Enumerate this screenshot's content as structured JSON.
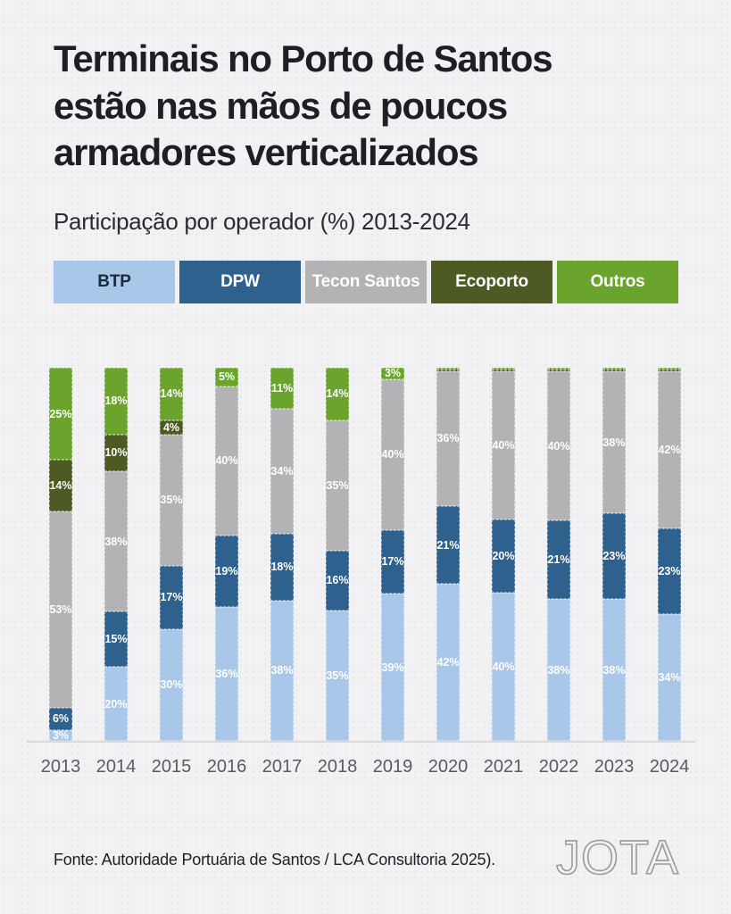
{
  "header": {
    "title_lines": [
      "Terminais no Porto de Santos",
      "estão nas mãos de poucos",
      "armadores verticalizados"
    ],
    "subtitle": "Participação por operador (%) 2013-2024"
  },
  "chart_data": {
    "type": "bar",
    "stacked": true,
    "unit": "%",
    "title": "Participação por operador (%) 2013-2024",
    "categories": [
      "2013",
      "2014",
      "2015",
      "2016",
      "2017",
      "2018",
      "2019",
      "2020",
      "2021",
      "2022",
      "2023",
      "2024"
    ],
    "series": [
      {
        "name": "BTP",
        "color": "#a9c7e9",
        "legend_text_color": "#1b2a3a",
        "values": [
          3,
          20,
          30,
          36,
          38,
          35,
          39,
          42,
          40,
          38,
          38,
          34
        ]
      },
      {
        "name": "DPW",
        "color": "#2f618f",
        "legend_text_color": "#ffffff",
        "values": [
          6,
          15,
          17,
          19,
          18,
          16,
          17,
          21,
          20,
          21,
          23,
          23
        ]
      },
      {
        "name": "Tecon Santos",
        "color": "#b3b3b5",
        "legend_text_color": "#ffffff",
        "values": [
          53,
          38,
          35,
          40,
          34,
          35,
          40,
          36,
          40,
          40,
          38,
          42
        ]
      },
      {
        "name": "Ecoporto",
        "color": "#4d5a23",
        "legend_text_color": "#ffffff",
        "values": [
          14,
          10,
          4,
          0,
          0,
          0,
          0,
          0.5,
          0.5,
          0.5,
          0.5,
          0.5
        ]
      },
      {
        "name": "Outros",
        "color": "#6aa42c",
        "legend_text_color": "#ffffff",
        "values": [
          25,
          18,
          14,
          5,
          11,
          14,
          3,
          0.5,
          0.5,
          0.5,
          0.5,
          0.5
        ]
      }
    ],
    "label_threshold": 3,
    "label_color": "#ffffff",
    "ylim": [
      0,
      100
    ],
    "legend_position": "top",
    "grid": false
  },
  "footer": {
    "source": "Fonte: Autoridade Portuária de Santos / LCA Consultoria 2025).",
    "logo": "JOTA"
  }
}
